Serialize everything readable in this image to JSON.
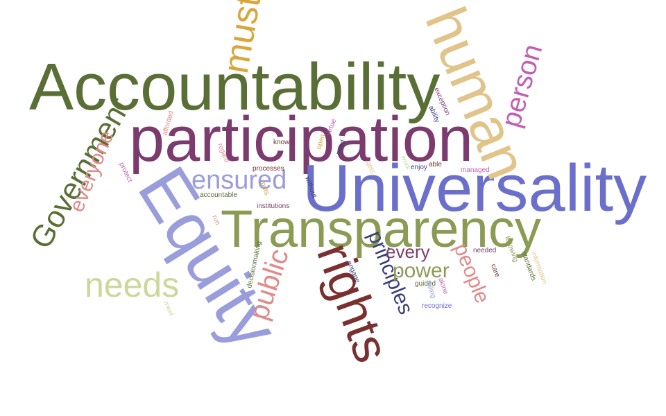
{
  "colors": {
    "olive_dark": "#5a6f35",
    "plum": "#7b3b6e",
    "periwinkle": "#6b6fcc",
    "lavender": "#9a9ddb",
    "olive_light": "#8c9b54",
    "pale_green": "#cdd79a",
    "tan": "#e0c48a",
    "gold": "#d9a63a",
    "magenta": "#c060b4",
    "rose": "#e08a8a",
    "maroon": "#7a3030",
    "navy": "#3a3f7a"
  },
  "words": [
    {
      "text": "Accountability",
      "color": "#5a6f35"
    },
    {
      "text": "participation",
      "color": "#7b3b6e"
    },
    {
      "text": "Universality",
      "color": "#6b6fcc"
    },
    {
      "text": "Transparency",
      "color": "#8c9b54"
    },
    {
      "text": "Equity",
      "color": "#9a9ddb"
    },
    {
      "text": "human",
      "color": "#e0c48a"
    },
    {
      "text": "rights",
      "color": "#7a3030"
    },
    {
      "text": "Government",
      "color": "#5a6f35"
    },
    {
      "text": "must",
      "color": "#d9a63a"
    },
    {
      "text": "needs",
      "color": "#cdd79a"
    },
    {
      "text": "ensured",
      "color": "#9a9ddb"
    },
    {
      "text": "person",
      "color": "#c060b4"
    },
    {
      "text": "everyone",
      "color": "#e08a8a"
    },
    {
      "text": "public",
      "color": "#e08a8a"
    },
    {
      "text": "principles",
      "color": "#3a3f7a"
    },
    {
      "text": "people",
      "color": "#e08a8a"
    },
    {
      "text": "power",
      "color": "#8c9b54"
    },
    {
      "text": "every",
      "color": "#7b3b6e"
    },
    {
      "text": "afforded",
      "color": "#e08a8a"
    },
    {
      "text": "protect",
      "color": "#c060b4"
    },
    {
      "text": "regard",
      "color": "#e08a8a"
    },
    {
      "text": "know",
      "color": "#7a3030"
    },
    {
      "text": "virtue",
      "color": "#c060b4"
    },
    {
      "text": "need",
      "color": "#3a3f7a"
    },
    {
      "text": "open",
      "color": "#d9a63a"
    },
    {
      "text": "exception",
      "color": "#7b3b6e"
    },
    {
      "text": "ability",
      "color": "#3a3f7a"
    },
    {
      "text": "gets",
      "color": "#e0c48a"
    },
    {
      "text": "work",
      "color": "#cdd79a"
    },
    {
      "text": "enjoy",
      "color": "#3a3f7a"
    },
    {
      "text": "able",
      "color": "#7a3030"
    },
    {
      "text": "managed",
      "color": "#c060b4"
    },
    {
      "text": "processes",
      "color": "#7a3030"
    },
    {
      "text": "without",
      "color": "#3a3f7a"
    },
    {
      "text": "puts",
      "color": "#d9a63a"
    },
    {
      "text": "accountable",
      "color": "#5a6f35"
    },
    {
      "text": "run",
      "color": "#e08a8a"
    },
    {
      "text": "institutions",
      "color": "#7b3b6e"
    },
    {
      "text": "decisionmaking",
      "color": "#5a6f35"
    },
    {
      "text": "engage",
      "color": "#3a3f7a"
    },
    {
      "text": "needed",
      "color": "#7b3b6e"
    },
    {
      "text": "following",
      "color": "#8c9b54"
    },
    {
      "text": "care",
      "color": "#7a3030"
    },
    {
      "text": "standards",
      "color": "#5a6f35"
    },
    {
      "text": "information",
      "color": "#e0c48a"
    },
    {
      "text": "guided",
      "color": "#5a6f35"
    },
    {
      "text": "alone",
      "color": "#c060b4"
    },
    {
      "text": "failing",
      "color": "#9a9ddb"
    },
    {
      "text": "recognize",
      "color": "#6b6fcc"
    },
    {
      "text": "meet",
      "color": "#cdd79a"
    }
  ]
}
